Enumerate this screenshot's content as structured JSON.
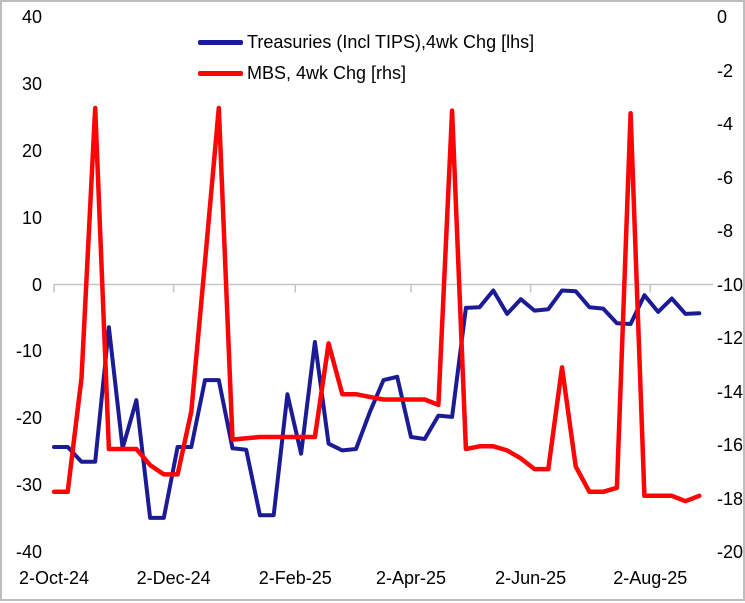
{
  "chart_data": {
    "type": "line",
    "title": "",
    "x_dates": [
      "2-Oct-24",
      "9-Oct-24",
      "16-Oct-24",
      "23-Oct-24",
      "30-Oct-24",
      "6-Nov-24",
      "13-Nov-24",
      "20-Nov-24",
      "27-Nov-24",
      "4-Dec-24",
      "11-Dec-24",
      "18-Dec-24",
      "25-Dec-24",
      "1-Jan-25",
      "8-Jan-25",
      "15-Jan-25",
      "22-Jan-25",
      "29-Jan-25",
      "5-Feb-25",
      "12-Feb-25",
      "19-Feb-25",
      "26-Feb-25",
      "5-Mar-25",
      "12-Mar-25",
      "19-Mar-25",
      "26-Mar-25",
      "2-Apr-25",
      "9-Apr-25",
      "16-Apr-25",
      "23-Apr-25",
      "30-Apr-25",
      "7-May-25",
      "14-May-25",
      "21-May-25",
      "28-May-25",
      "4-Jun-25",
      "11-Jun-25",
      "18-Jun-25",
      "25-Jun-25",
      "2-Jul-25",
      "9-Jul-25",
      "16-Jul-25",
      "23-Jul-25",
      "30-Jul-25",
      "6-Aug-25",
      "13-Aug-25",
      "20-Aug-25",
      "27-Aug-25"
    ],
    "series": [
      {
        "name": "Treasuries (Incl TIPS),4wk Chg [lhs]",
        "axis": "left",
        "color": "#1b1b96",
        "width": 4,
        "values": [
          -24.3,
          -24.3,
          -26.5,
          -26.5,
          -6.4,
          -24.5,
          -17.3,
          -34.9,
          -34.9,
          -24.3,
          -24.3,
          -14.3,
          -14.3,
          -24.5,
          -24.7,
          -34.5,
          -34.5,
          -16.4,
          -25.3,
          -8.6,
          -23.8,
          -24.8,
          -24.6,
          -19.1,
          -14.3,
          -13.8,
          -22.8,
          -23.1,
          -19.6,
          -19.8,
          -3.5,
          -3.4,
          -0.9,
          -4.4,
          -2.2,
          -3.9,
          -3.7,
          -0.9,
          -1.0,
          -3.4,
          -3.6,
          -5.8,
          -5.9,
          -1.6,
          -4.1,
          -2.1,
          -4.4,
          -4.3
        ]
      },
      {
        "name": "MBS, 4wk Chg [rhs]",
        "axis": "right",
        "color": "#fb0606",
        "width": 4.5,
        "values": [
          -17.75,
          -17.75,
          -13.5,
          -3.4,
          -16.15,
          -16.15,
          -16.15,
          -16.75,
          -17.1,
          -17.1,
          -14.75,
          -9.15,
          -3.4,
          -15.8,
          -15.75,
          -15.7,
          -15.7,
          -15.7,
          -15.7,
          -15.7,
          -12.2,
          -14.1,
          -14.1,
          -14.2,
          -14.3,
          -14.3,
          -14.3,
          -14.3,
          -14.5,
          -3.5,
          -16.15,
          -16.05,
          -16.05,
          -16.2,
          -16.5,
          -16.9,
          -16.9,
          -13.1,
          -16.8,
          -17.75,
          -17.75,
          -17.6,
          -3.6,
          -17.9,
          -17.9,
          -17.9,
          -18.1,
          -17.9
        ]
      }
    ],
    "left_axis": {
      "ticks": [
        40,
        30,
        20,
        10,
        0,
        -10,
        -20,
        -30,
        -40
      ],
      "ylim": [
        -40,
        40
      ]
    },
    "right_axis": {
      "ticks": [
        0,
        -2,
        -4,
        -6,
        -8,
        -10,
        -12,
        -14,
        -16,
        -18,
        -20
      ],
      "ylim": [
        -20,
        0
      ]
    },
    "x_axis": {
      "labels": [
        {
          "label": "2-Oct-24",
          "day": 0
        },
        {
          "label": "2-Dec-24",
          "day": 61
        },
        {
          "label": "2-Feb-25",
          "day": 123
        },
        {
          "label": "2-Apr-25",
          "day": 182
        },
        {
          "label": "2-Jun-25",
          "day": 243
        },
        {
          "label": "2-Aug-25",
          "day": 304
        }
      ],
      "day_span": 336
    },
    "grid": {
      "zero_line_color": "#c6c6c6",
      "axis_line_on_zero": true
    },
    "legend_position": "top-left-inset"
  }
}
